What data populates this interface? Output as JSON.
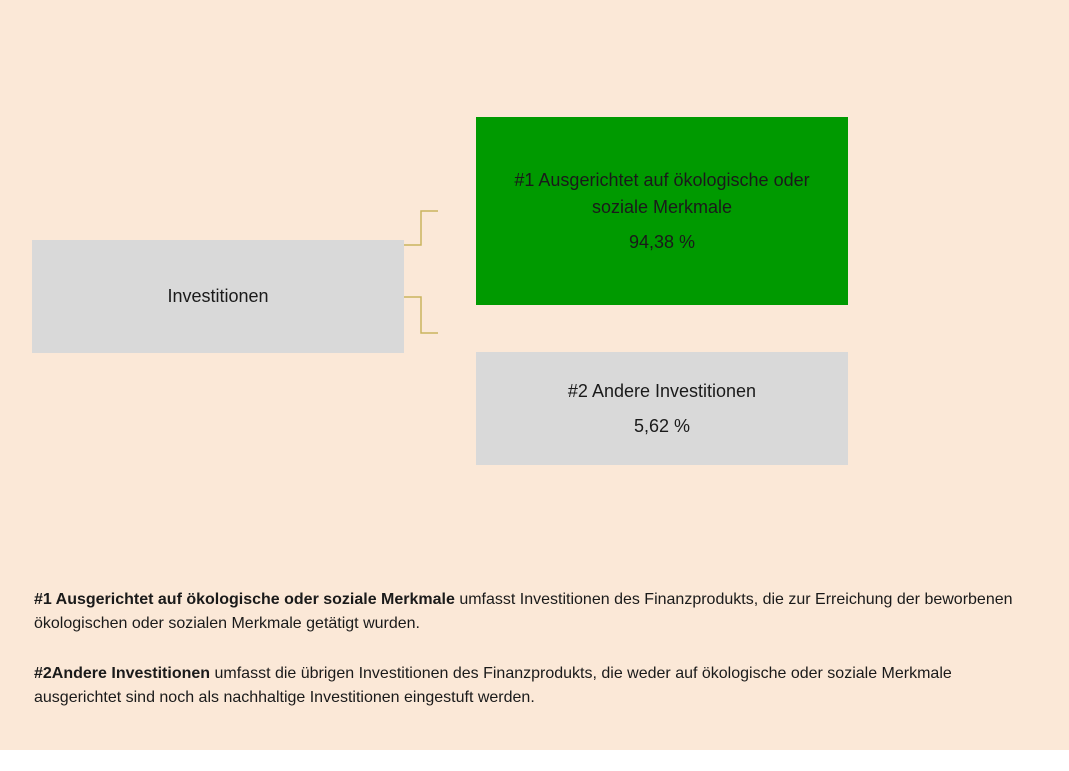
{
  "root": {
    "label": "Investitionen"
  },
  "nodes": [
    {
      "label": "#1 Ausgerichtet auf ökologische oder soziale Merkmale",
      "value": "94,38 %"
    },
    {
      "label": "#2 Andere Investitionen",
      "value": "5,62 %"
    }
  ],
  "notes": [
    {
      "term": "#1 Ausgerichtet auf ökologische oder soziale Merkmale",
      "text": " umfasst Investitionen des Finanzprodukts, die zur Erreichung der beworbenen ökologischen oder sozialen Merkmale getätigt wurden."
    },
    {
      "term": "#2Andere Investitionen",
      "text": " umfasst die übrigen Investitionen des Finanzprodukts, die weder auf ökologische oder soziale Merkmale ausgerichtet sind noch als nachhaltige Investitionen eingestuft werden."
    }
  ]
}
